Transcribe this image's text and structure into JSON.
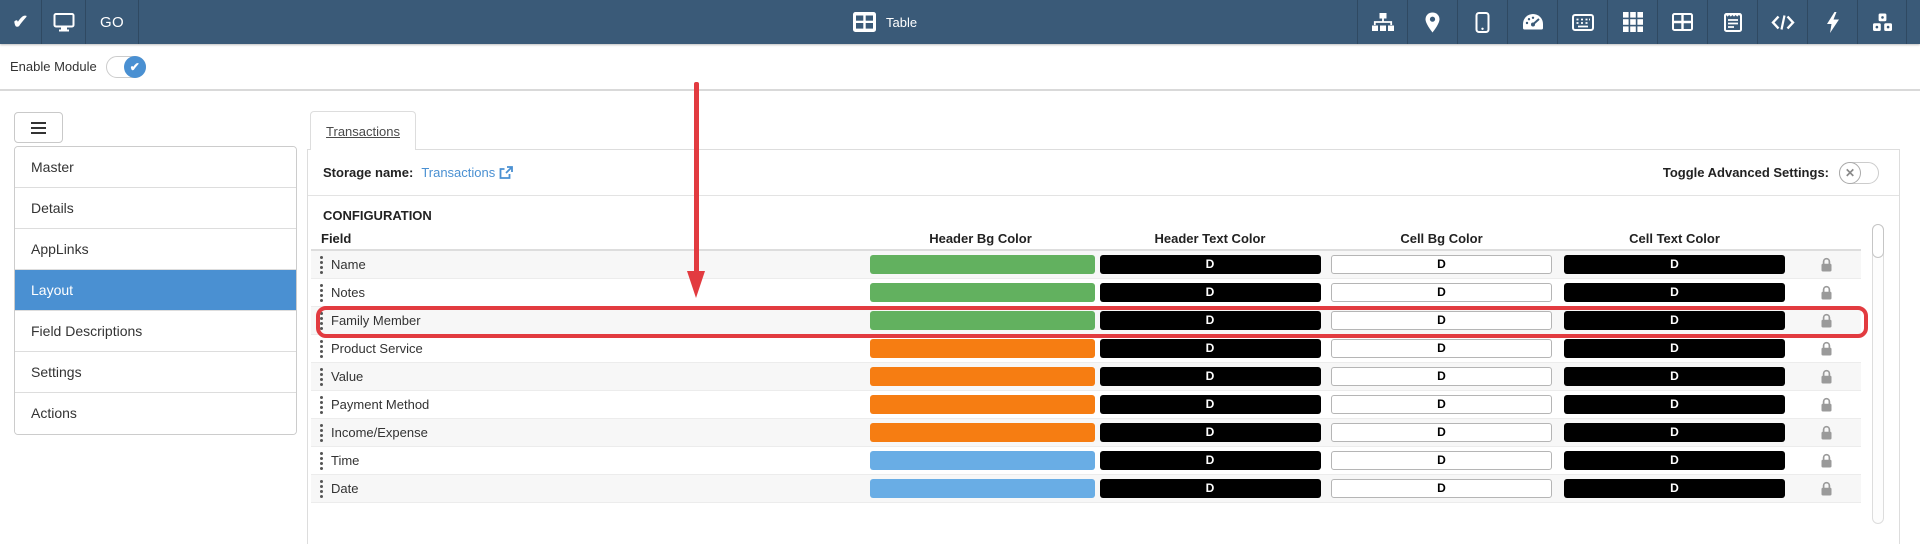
{
  "topbar": {
    "left_icons": [
      {
        "name": "check-icon"
      },
      {
        "name": "monitor-icon"
      },
      {
        "name": "go-button",
        "label": "GO"
      }
    ],
    "title": "Table",
    "title_icon": "table-chip-icon",
    "right_icons": [
      "sitemap-icon",
      "location-icon",
      "mobile-icon",
      "dashboard-icon",
      "keyboard-icon",
      "grid-icon",
      "table-icon",
      "form-icon",
      "code-icon",
      "bolt-icon",
      "cubes-icon"
    ]
  },
  "enable_module": {
    "label": "Enable Module",
    "state": "on"
  },
  "sidebar": {
    "items": [
      {
        "label": "Master",
        "active": false
      },
      {
        "label": "Details",
        "active": false
      },
      {
        "label": "AppLinks",
        "active": false
      },
      {
        "label": "Layout",
        "active": true
      },
      {
        "label": "Field Descriptions",
        "active": false
      },
      {
        "label": "Settings",
        "active": false
      },
      {
        "label": "Actions",
        "active": false
      }
    ]
  },
  "main": {
    "tab_label": "Transactions",
    "storage_label": "Storage name:",
    "storage_link": "Transactions",
    "toggle_advanced_label": "Toggle Advanced Settings:",
    "toggle_advanced_state": "off",
    "section_title": "CONFIGURATION",
    "table": {
      "columns": [
        "Field",
        "Header Bg Color",
        "Header Text Color",
        "Cell Bg Color",
        "Cell Text Color"
      ],
      "rows": [
        {
          "field": "Name",
          "header_bg_color": "#62b15f",
          "header_text": "D",
          "cell_bg": "D",
          "cell_text": "D"
        },
        {
          "field": "Notes",
          "header_bg_color": "#62b15f",
          "header_text": "D",
          "cell_bg": "D",
          "cell_text": "D"
        },
        {
          "field": "Family Member",
          "header_bg_color": "#62b15f",
          "header_text": "D",
          "cell_bg": "D",
          "cell_text": "D",
          "highlighted": true
        },
        {
          "field": "Product Service",
          "header_bg_color": "#f67d12",
          "header_text": "D",
          "cell_bg": "D",
          "cell_text": "D"
        },
        {
          "field": "Value",
          "header_bg_color": "#f67d12",
          "header_text": "D",
          "cell_bg": "D",
          "cell_text": "D"
        },
        {
          "field": "Payment Method",
          "header_bg_color": "#f67d12",
          "header_text": "D",
          "cell_bg": "D",
          "cell_text": "D"
        },
        {
          "field": "Income/Expense",
          "header_bg_color": "#f67d12",
          "header_text": "D",
          "cell_bg": "D",
          "cell_text": "D"
        },
        {
          "field": "Time",
          "header_bg_color": "#69ade5",
          "header_text": "D",
          "cell_bg": "D",
          "cell_text": "D"
        },
        {
          "field": "Date",
          "header_bg_color": "#69ade5",
          "header_text": "D",
          "cell_bg": "D",
          "cell_text": "D"
        }
      ]
    }
  },
  "annotations": {
    "highlighted_row": "Family Member",
    "color": "#e23b40"
  },
  "colors": {
    "topbar_bg": "#3a5a78",
    "accent_blue": "#4a90d2",
    "green_bar": "#62b15f",
    "orange_bar": "#f67d12",
    "blue_bar": "#69ade5",
    "annotation_red": "#e23b40"
  }
}
